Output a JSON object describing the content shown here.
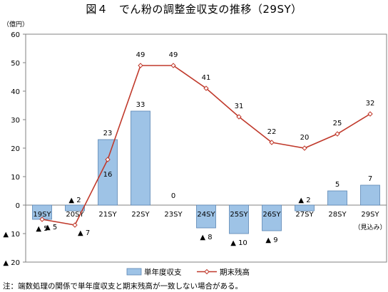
{
  "title": "図４　でん粉の調整金収支の推移（29SY）",
  "note": "注：端数処理の関係で単年度収支と期末残高が一致しない場合がある。",
  "chart_data": {
    "type": "bar+line",
    "title": "図４　でん粉の調整金収支の推移（29SY）",
    "ylabel": "（億円）",
    "ylim": [
      -20,
      60
    ],
    "yticks": [
      60,
      50,
      40,
      30,
      20,
      10,
      0,
      -10,
      -20
    ],
    "ytick_labels": [
      "60",
      "50",
      "40",
      "30",
      "20",
      "10",
      "0",
      "▲ 10",
      "▲ 20"
    ],
    "categories": [
      "19SY",
      "20SY",
      "21SY",
      "22SY",
      "23SY",
      "24SY",
      "25SY",
      "26SY",
      "27SY",
      "28SY",
      "29SY"
    ],
    "category_sublabel": {
      "index": 10,
      "text": "（見込み）"
    },
    "grid": false,
    "legend_position": "bottom",
    "series": [
      {
        "name": "単年度収支",
        "type": "bar",
        "color": "#9ec3e6",
        "values": [
          -5,
          -2,
          23,
          33,
          0,
          -8,
          -10,
          -9,
          -2,
          5,
          7
        ],
        "labels": [
          "▲ 5",
          "▲ 2",
          "23",
          "33",
          "0",
          "▲ 8",
          "▲ 10",
          "▲ 9",
          "▲ 2",
          "5",
          "7"
        ]
      },
      {
        "name": "期末残高",
        "type": "line",
        "color": "#c0392b",
        "values": [
          -5,
          -7,
          16,
          49,
          49,
          41,
          31,
          22,
          20,
          25,
          32
        ],
        "labels": [
          "▲ 5",
          "▲ 7",
          "16",
          "49",
          "49",
          "41",
          "31",
          "22",
          "20",
          "25",
          "32"
        ]
      }
    ]
  }
}
